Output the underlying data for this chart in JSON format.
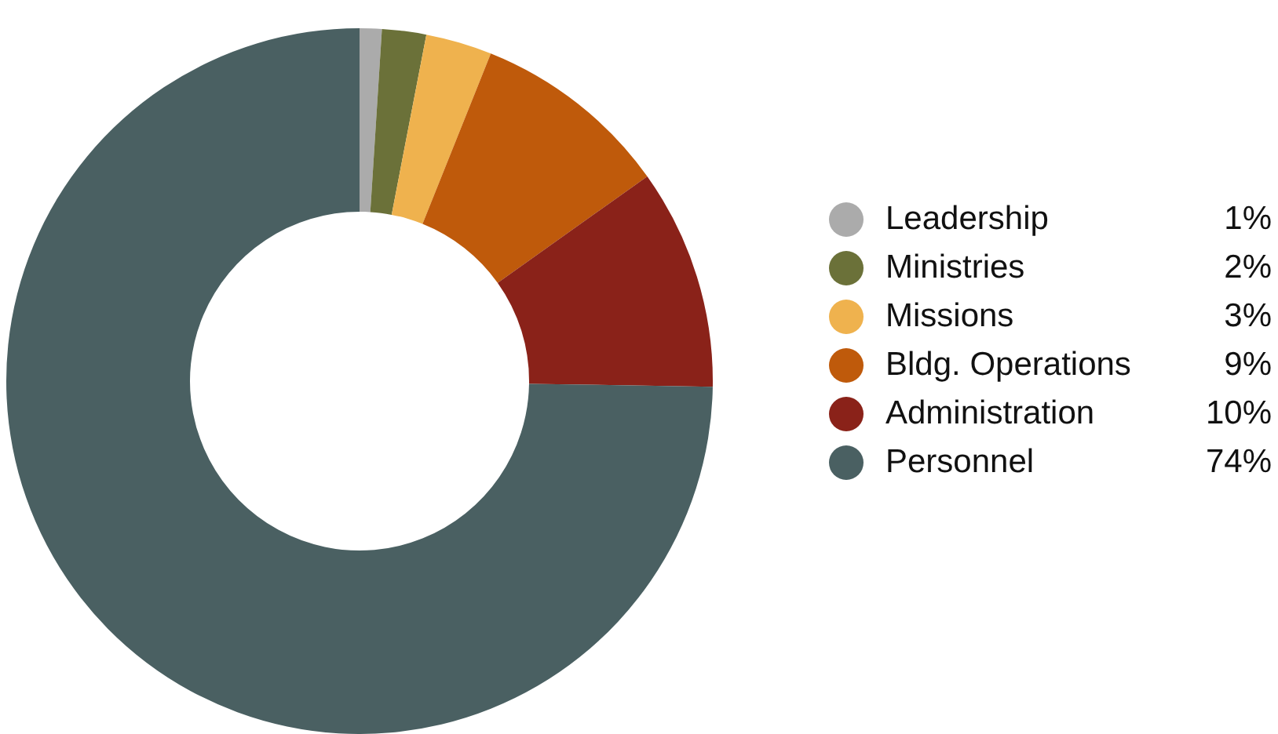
{
  "chart_data": {
    "type": "donut",
    "categories": [
      "Leadership",
      "Ministries",
      "Missions",
      "Bldg. Operations",
      "Administration",
      "Personnel"
    ],
    "values": [
      1,
      2,
      3,
      9,
      10,
      74
    ],
    "value_labels": [
      "1%",
      "2%",
      "3%",
      "9%",
      "10%",
      "74%"
    ],
    "colors": [
      "#ababab",
      "#6b7139",
      "#efb24e",
      "#bf5a0b",
      "#8a2219",
      "#4a6062"
    ],
    "legend": "right"
  }
}
